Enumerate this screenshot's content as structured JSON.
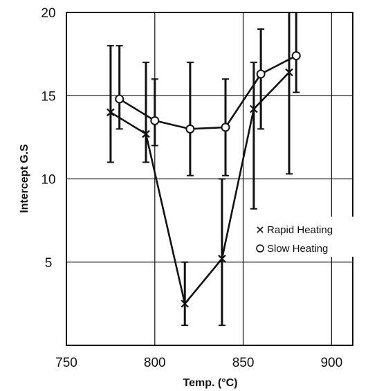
{
  "chart_data": {
    "type": "line",
    "xlabel": "Temp. (°C)",
    "ylabel": "Intercept  G.S",
    "xlim": [
      750,
      912
    ],
    "ylim": [
      0,
      20
    ],
    "x_ticks": [
      "750",
      "800",
      "850",
      "900"
    ],
    "y_ticks": [
      "",
      "5",
      "10",
      "15",
      "20"
    ],
    "grid": true,
    "legend_position": "right",
    "series": [
      {
        "name": "Rapid Heating",
        "marker": "x",
        "points": [
          {
            "x": 775,
            "y": 14.0,
            "err_low": 11.0,
            "err_high": 18.0
          },
          {
            "x": 795,
            "y": 12.7,
            "err_low": 11.0,
            "err_high": 17.0
          },
          {
            "x": 817,
            "y": 2.5,
            "err_low": 1.2,
            "err_high": 5.0
          },
          {
            "x": 838,
            "y": 5.2,
            "err_low": 1.2,
            "err_high": 10.0
          },
          {
            "x": 856,
            "y": 14.2,
            "err_low": 8.2,
            "err_high": 17.0
          },
          {
            "x": 876,
            "y": 16.4,
            "err_low": 10.3,
            "err_high": 20.0
          }
        ]
      },
      {
        "name": "Slow Heating",
        "marker": "o",
        "points": [
          {
            "x": 780,
            "y": 14.8,
            "err_low": 13.0,
            "err_high": 18.0
          },
          {
            "x": 800,
            "y": 13.5,
            "err_low": 12.0,
            "err_high": 16.0
          },
          {
            "x": 820,
            "y": 13.0,
            "err_low": 10.2,
            "err_high": 17.0
          },
          {
            "x": 840,
            "y": 13.1,
            "err_low": 10.2,
            "err_high": 16.0
          },
          {
            "x": 860,
            "y": 16.3,
            "err_low": 13.0,
            "err_high": 19.0
          },
          {
            "x": 880,
            "y": 17.4,
            "err_low": 15.2,
            "err_high": 20.0
          }
        ]
      }
    ]
  }
}
